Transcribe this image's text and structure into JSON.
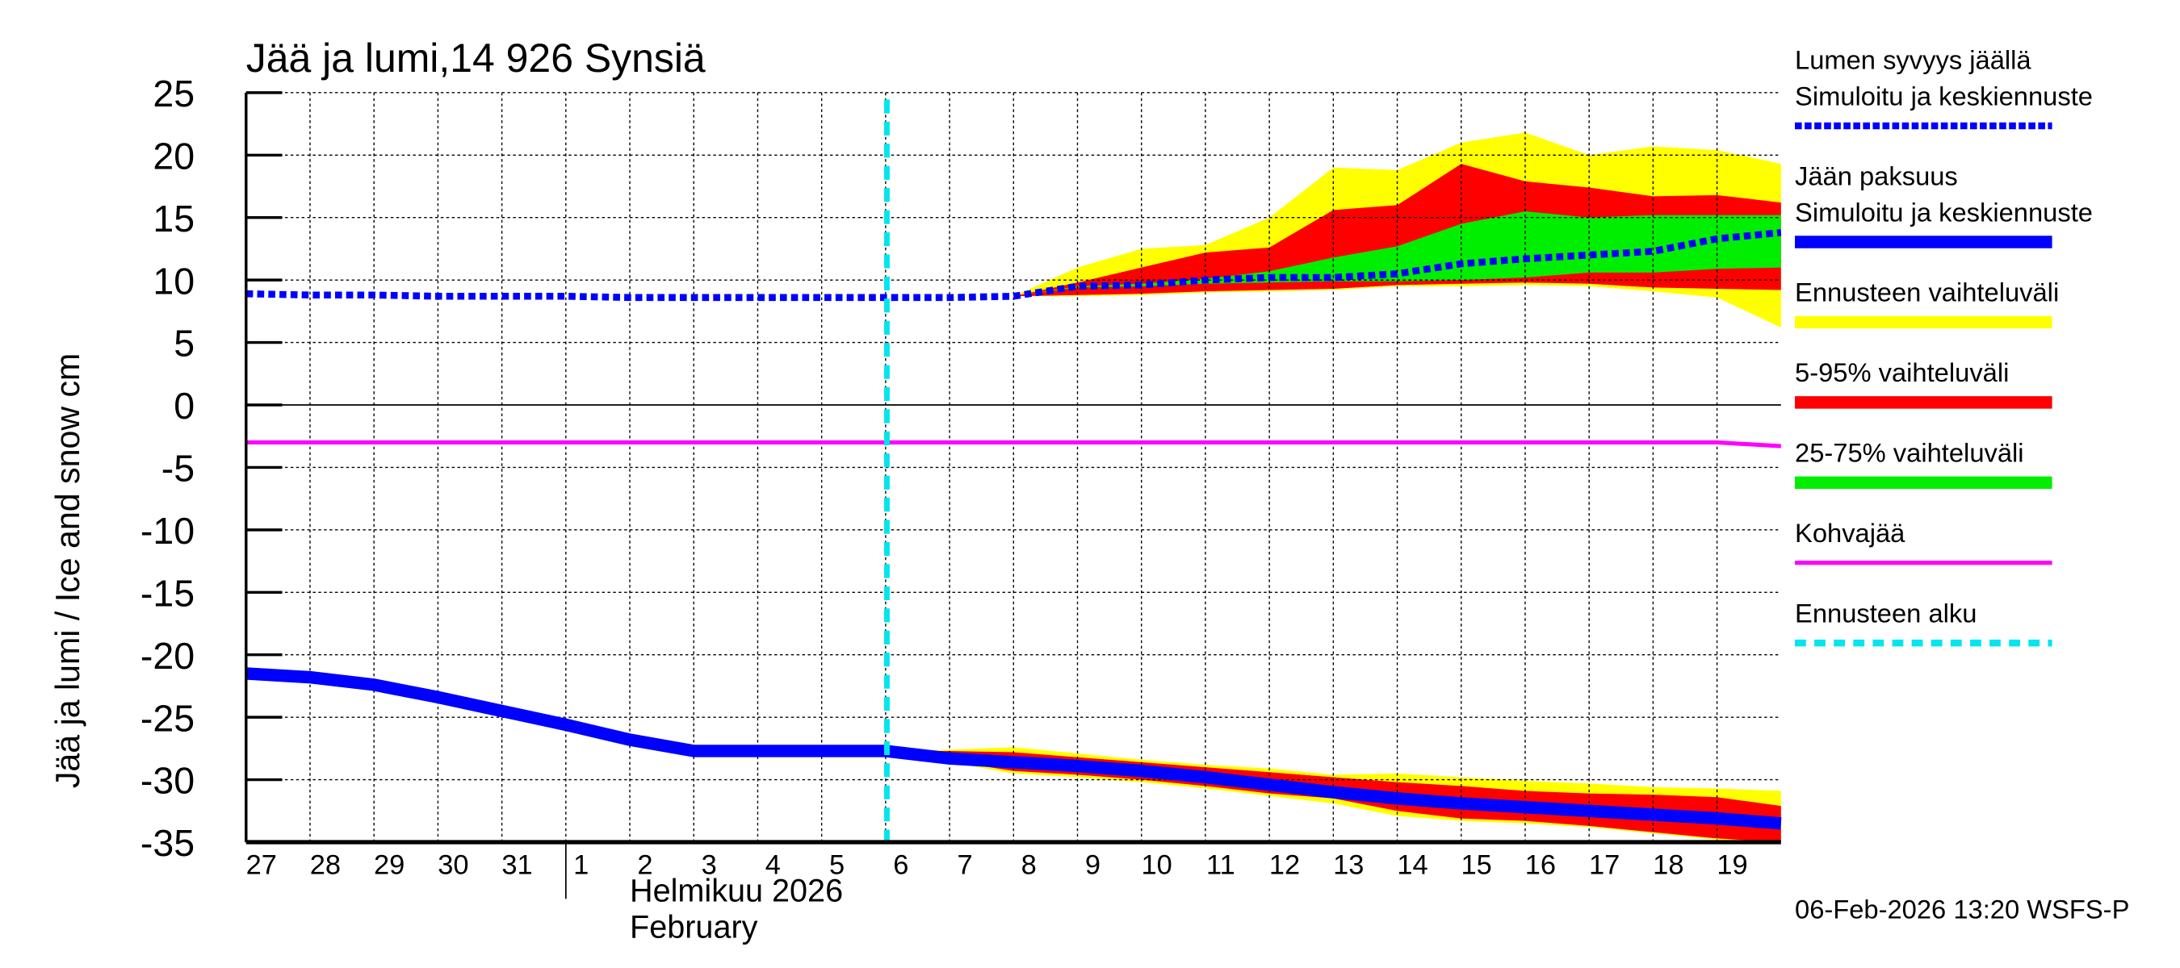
{
  "chart_data": {
    "type": "area",
    "title": "Jää ja lumi,14 926 Synsiä",
    "ylabel": "Jää ja lumi / Ice and snow    cm",
    "ylim": [
      -35,
      25
    ],
    "yticks": [
      25,
      20,
      15,
      10,
      5,
      0,
      -5,
      -10,
      -15,
      -20,
      -25,
      -30,
      -35
    ],
    "x_tick_labels": [
      "27",
      "28",
      "29",
      "30",
      "31",
      "1",
      "2",
      "3",
      "4",
      "5",
      "6",
      "7",
      "8",
      "9",
      "10",
      "11",
      "12",
      "13",
      "14",
      "15",
      "16",
      "17",
      "18",
      "19"
    ],
    "month_label_fi": "Helmikuu  2026",
    "month_label_en": "February",
    "grid": true,
    "forecast_start_index": 10.02,
    "x_dates": [
      "Jan 27",
      "Jan 28",
      "Jan 29",
      "Jan 30",
      "Jan 31",
      "Feb 1",
      "Feb 2",
      "Feb 3",
      "Feb 4",
      "Feb 5",
      "Feb 6",
      "Feb 7",
      "Feb 8",
      "Feb 9",
      "Feb 10",
      "Feb 11",
      "Feb 12",
      "Feb 13",
      "Feb 14",
      "Feb 15",
      "Feb 16",
      "Feb 17",
      "Feb 18",
      "Feb 19",
      "Feb 20"
    ],
    "series": [
      {
        "name": "Lumen syvyys jäällä Simuloitu ja keskiennuste",
        "style": "dashed",
        "color": "#0000ff",
        "values": [
          8.9,
          8.8,
          8.8,
          8.7,
          8.7,
          8.7,
          8.6,
          8.6,
          8.6,
          8.6,
          8.6,
          8.6,
          8.7,
          9.5,
          9.6,
          10.0,
          10.2,
          10.2,
          10.5,
          11.3,
          11.7,
          12.0,
          12.3,
          13.3,
          13.8
        ]
      },
      {
        "name": "Jään paksuus Simuloitu ja keskiennuste",
        "style": "solid",
        "color": "#0000ff",
        "values": [
          -21.5,
          -21.8,
          -22.4,
          -23.4,
          -24.5,
          -25.6,
          -26.8,
          -27.7,
          -27.7,
          -27.7,
          -27.7,
          -28.3,
          -28.6,
          -28.9,
          -29.3,
          -29.8,
          -30.4,
          -31.0,
          -31.5,
          -31.9,
          -32.2,
          -32.5,
          -32.8,
          -33.1,
          -33.5
        ]
      },
      {
        "name": "Kohvajää",
        "style": "solid",
        "color": "#ff00ff",
        "values": [
          -3,
          -3,
          -3,
          -3,
          -3,
          -3,
          -3,
          -3,
          -3,
          -3,
          -3,
          -3,
          -3,
          -3,
          -3,
          -3,
          -3,
          -3,
          -3,
          -3,
          -3,
          -3,
          -3,
          -3,
          -3.3
        ]
      }
    ],
    "bands": [
      {
        "name": "Ennusteen vaihteluväli",
        "color": "#ffff00",
        "start_index": 12,
        "upper": [
          8.7,
          11,
          12.5,
          12.8,
          15,
          19,
          18.8,
          21,
          21.8,
          20,
          20.7,
          20.4,
          19.3
        ],
        "lower": [
          8.7,
          8.7,
          8.8,
          9.0,
          9.1,
          9.2,
          9.5,
          9.5,
          9.6,
          9.5,
          9.1,
          8.6,
          6.2
        ]
      },
      {
        "name": "5-95% vaihteluväli",
        "color": "#ff0000",
        "start_index": 12,
        "upper": [
          8.7,
          9.8,
          11,
          12.2,
          12.6,
          15.6,
          16,
          19.3,
          17.9,
          17.4,
          16.7,
          16.8,
          16.2
        ],
        "lower": [
          8.7,
          8.8,
          8.9,
          9.1,
          9.2,
          9.3,
          9.6,
          9.7,
          9.8,
          9.7,
          9.4,
          9.3,
          9.2
        ]
      },
      {
        "name": "25-75% vaihteluväli",
        "color": "#00ee00",
        "start_index": 12,
        "upper": [
          8.7,
          9.5,
          9.7,
          10.1,
          10.7,
          11.8,
          12.7,
          14.5,
          15.5,
          15.0,
          15.2,
          15.2,
          15.2
        ],
        "lower": [
          8.7,
          9.4,
          9.5,
          9.7,
          9.8,
          9.9,
          9.9,
          10.0,
          10.2,
          10.6,
          10.6,
          10.9,
          11.0
        ]
      },
      {
        "name": "Ennusteen vaihteluväli",
        "color": "#ffff00",
        "start_index": 10,
        "upper": [
          -27.7,
          -27.6,
          -27.4,
          -27.9,
          -28.4,
          -28.8,
          -29.1,
          -29.6,
          -29.5,
          -29.8,
          -30.1,
          -30.3,
          -30.6,
          -30.7,
          -30.9
        ],
        "lower": [
          -28.0,
          -28.6,
          -29.5,
          -29.8,
          -30.2,
          -30.7,
          -31.3,
          -31.9,
          -32.9,
          -33.3,
          -33.5,
          -33.8,
          -34.3,
          -34.8,
          -35
        ]
      },
      {
        "name": "5-95% vaihteluväli",
        "color": "#ff0000",
        "start_index": 10,
        "upper": [
          -27.7,
          -27.7,
          -27.8,
          -28.2,
          -28.6,
          -29.0,
          -29.4,
          -29.8,
          -30.2,
          -30.5,
          -30.9,
          -31.1,
          -31.2,
          -31.4,
          -32.1
        ],
        "lower": [
          -28.0,
          -28.5,
          -29.3,
          -29.6,
          -30.0,
          -30.5,
          -31.1,
          -31.5,
          -32.5,
          -33.1,
          -33.3,
          -33.7,
          -34.2,
          -34.7,
          -35
        ]
      },
      {
        "name": "25-75% vaihteluväli",
        "color": "#00ee00",
        "start_index": 10,
        "upper": [
          -27.5,
          -28.1,
          -28.4,
          -28.7,
          -29.1,
          -29.6,
          -30.2,
          -30.8,
          -31.3,
          -31.7,
          -32.0,
          -32.3,
          -32.6,
          -32.9,
          -33.2
        ],
        "lower": [
          -28.0,
          -28.6,
          -28.9,
          -29.2,
          -29.6,
          -30.1,
          -30.7,
          -31.3,
          -31.8,
          -32.2,
          -32.5,
          -32.8,
          -33.1,
          -33.4,
          -33.8
        ]
      }
    ],
    "legend": {
      "placement": "right",
      "entries": [
        {
          "line1": "Lumen syvyys jäällä",
          "line2": "Simuloitu ja keskiennuste",
          "color": "#0000ff",
          "style": "dashed"
        },
        {
          "line1": "Jään paksuus",
          "line2": "Simuloitu ja keskiennuste",
          "color": "#0000ff",
          "style": "thick"
        },
        {
          "line1": "Ennusteen vaihteluväli",
          "color": "#ffff00",
          "style": "bar"
        },
        {
          "line1": "5-95% vaihteluväli",
          "color": "#ff0000",
          "style": "bar"
        },
        {
          "line1": "25-75% vaihteluväli",
          "color": "#00ee00",
          "style": "bar"
        },
        {
          "line1": "Kohvajää",
          "color": "#ff00ff",
          "style": "line"
        },
        {
          "line1": "Ennusteen alku",
          "color": "#00e5ee",
          "style": "dotted"
        }
      ]
    },
    "footer": "06-Feb-2026 13:20 WSFS-P"
  }
}
